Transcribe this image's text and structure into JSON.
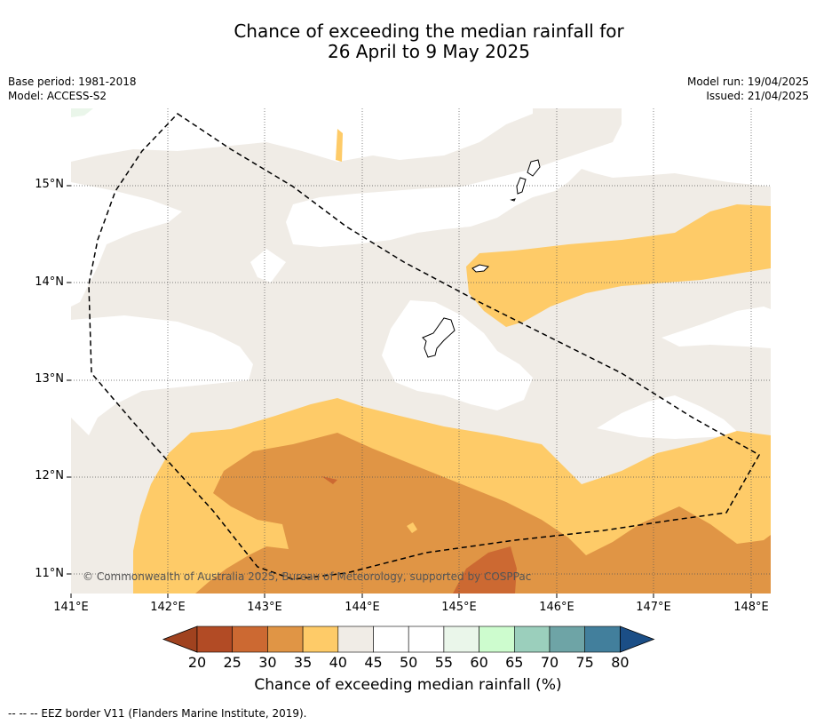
{
  "title_line1": "Chance of exceeding the median rainfall for",
  "title_line2": "26 April to 9 May 2025",
  "base_period": "Base period: 1981-2018",
  "model": "Model: ACCESS-S2",
  "model_run": "Model run: 19/04/2025",
  "issued": "Issued: 21/04/2025",
  "lat_labels": [
    "15°N",
    "14°N",
    "13°N",
    "12°N",
    "11°N"
  ],
  "lon_labels": [
    "141°E",
    "142°E",
    "143°E",
    "144°E",
    "145°E",
    "146°E",
    "147°E",
    "148°E"
  ],
  "colorbar_ticks": [
    "20",
    "25",
    "30",
    "35",
    "40",
    "45",
    "50",
    "55",
    "60",
    "65",
    "70",
    "75",
    "80"
  ],
  "colorbar_colors": [
    "#a0421f",
    "#b24b25",
    "#cc6932",
    "#e09545",
    "#fecb68",
    "#f0ece6",
    "#ffffff",
    "#ffffff",
    "#eaf6ea",
    "#cdfcce",
    "#9bcfbc",
    "#6ea4a6",
    "#427f9c",
    "#1b4e86"
  ],
  "colorbar_title": "Chance of exceeding median rainfall (%)",
  "copyright": "© Commonwealth of Australia 2025, Bureau of Meteorology, supported by COSPPac",
  "footer": "--  --  -- EEZ border V11 (Flanders Marine Institute, 2019)."
}
